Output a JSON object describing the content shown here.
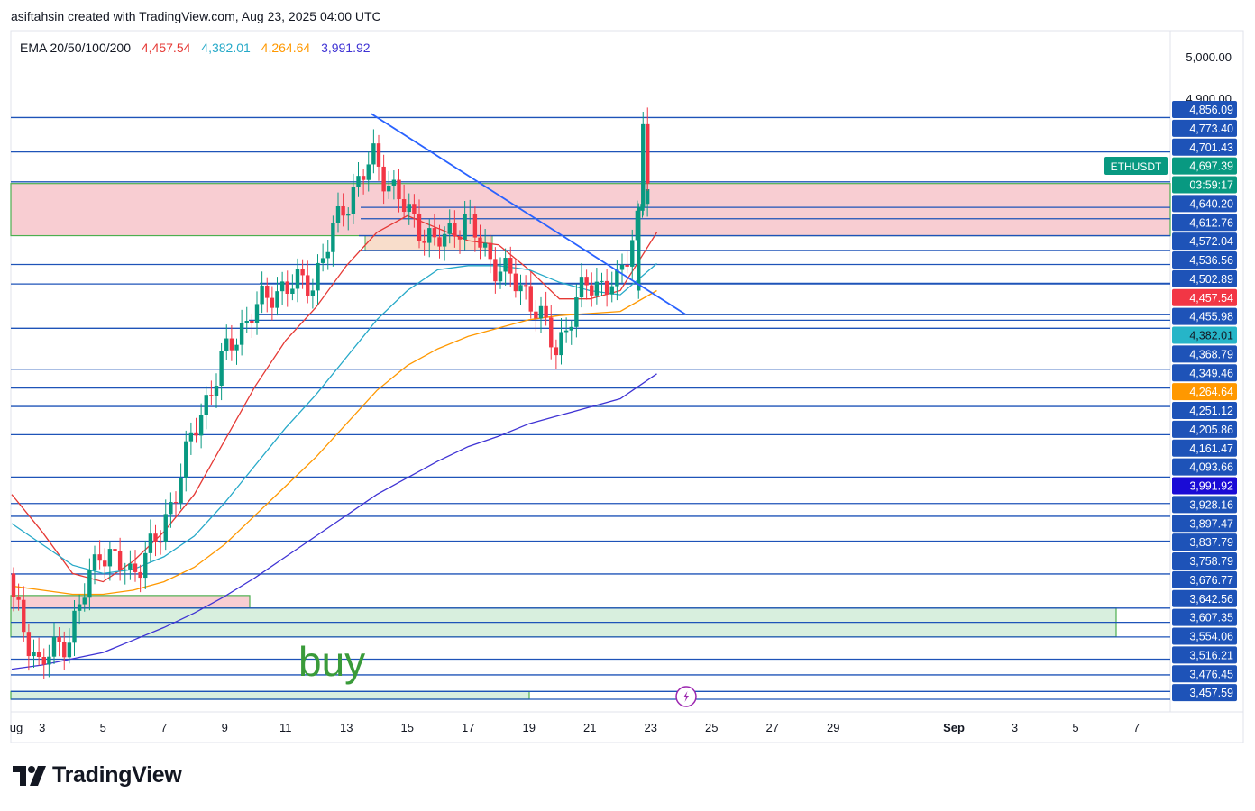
{
  "header": {
    "title": "asiftahsin created with TradingView.com, Aug 23, 2025 04:00 UTC"
  },
  "ema_legend": {
    "label": "EMA 20/50/100/200",
    "values": [
      "4,457.54",
      "4,382.01",
      "4,264.64",
      "3,991.92"
    ],
    "colors": [
      "#e53935",
      "#26a9c8",
      "#ff9800",
      "#3f33d4"
    ]
  },
  "brand": {
    "name": "TradingView"
  },
  "colors": {
    "up": "#089981",
    "down": "#f23645",
    "level_line": "#1e53b8",
    "trend_line": "#2962ff",
    "zone_red": "#f8cdd2",
    "zone_green": "#d8efde",
    "zone_border": "#4caf50",
    "buy_text": "#3a9b3a"
  },
  "chart_data": {
    "type": "candlestick",
    "symbol": "ETHUSDT",
    "countdown": "03:59:17",
    "current_price": 4697.39,
    "ylim": [
      3435,
      5035
    ],
    "price_axis_ticks": [
      5000,
      4900
    ],
    "x_tick_labels": [
      "ug",
      "3",
      "5",
      "7",
      "9",
      "11",
      "13",
      "15",
      "17",
      "19",
      "21",
      "23",
      "25",
      "27",
      "29",
      "Sep",
      "3",
      "5",
      "7"
    ],
    "horizontal_levels": [
      4856.09,
      4773.4,
      4701.43,
      4640.2,
      4612.76,
      4572.04,
      4536.56,
      4502.89,
      4457.54,
      4455.98,
      4382.01,
      4368.79,
      4349.46,
      4251.12,
      4205.86,
      4161.47,
      4093.66,
      3991.92,
      3928.16,
      3897.47,
      3837.79,
      3758.79,
      3676.77,
      3642.56,
      3607.35,
      3554.06,
      3516.21,
      3476.45,
      3457.59
    ],
    "price_labels": [
      {
        "text": "4,856.09",
        "kind": "plain"
      },
      {
        "text": "4,773.40",
        "kind": "plain"
      },
      {
        "text": "4,701.43",
        "kind": "plain"
      },
      {
        "text": "4,697.39",
        "kind": "green"
      },
      {
        "text": "03:59:17",
        "kind": "green"
      },
      {
        "text": "4,640.20",
        "kind": "plain"
      },
      {
        "text": "4,612.76",
        "kind": "plain"
      },
      {
        "text": "4,572.04",
        "kind": "plain"
      },
      {
        "text": "4,536.56",
        "kind": "plain"
      },
      {
        "text": "4,502.89",
        "kind": "plain"
      },
      {
        "text": "4,457.54",
        "kind": "red"
      },
      {
        "text": "4,455.98",
        "kind": "plain"
      },
      {
        "text": "4,382.01",
        "kind": "teal"
      },
      {
        "text": "4,368.79",
        "kind": "plain"
      },
      {
        "text": "4,349.46",
        "kind": "plain"
      },
      {
        "text": "4,264.64",
        "kind": "orange"
      },
      {
        "text": "4,251.12",
        "kind": "plain"
      },
      {
        "text": "4,205.86",
        "kind": "plain"
      },
      {
        "text": "4,161.47",
        "kind": "plain"
      },
      {
        "text": "4,093.66",
        "kind": "plain"
      },
      {
        "text": "3,991.92",
        "kind": "navy"
      },
      {
        "text": "3,928.16",
        "kind": "plain"
      },
      {
        "text": "3,897.47",
        "kind": "plain"
      },
      {
        "text": "3,837.79",
        "kind": "plain"
      },
      {
        "text": "3,758.79",
        "kind": "plain"
      },
      {
        "text": "3,676.77",
        "kind": "plain"
      },
      {
        "text": "3,642.56",
        "kind": "plain"
      },
      {
        "text": "3,607.35",
        "kind": "plain"
      },
      {
        "text": "3,554.06",
        "kind": "plain"
      },
      {
        "text": "3,516.21",
        "kind": "plain"
      },
      {
        "text": "3,476.45",
        "kind": "plain"
      },
      {
        "text": "3,457.59",
        "kind": "plain"
      }
    ],
    "zones": [
      {
        "kind": "resistance",
        "from": 4572.04,
        "to": 4697.39
      },
      {
        "kind": "resistance",
        "from": 3676.77,
        "to": 3707
      },
      {
        "kind": "support",
        "from": 3607.35,
        "to": 3676.77
      },
      {
        "kind": "support",
        "from": 3457.59,
        "to": 3476.45
      }
    ],
    "annotation": "buy",
    "ema": [
      {
        "name": "EMA 20",
        "last": 4457.54
      },
      {
        "name": "EMA 50",
        "last": 4382.01
      },
      {
        "name": "EMA 100",
        "last": 4264.64
      },
      {
        "name": "EMA 200",
        "last": 3991.92
      }
    ],
    "candles_sampled": [
      {
        "date": "Aug 2",
        "close": 3720
      },
      {
        "date": "Aug 3",
        "close": 3540
      },
      {
        "date": "Aug 4",
        "close": 3610
      },
      {
        "date": "Aug 5",
        "close": 3820
      },
      {
        "date": "Aug 6",
        "close": 3760
      },
      {
        "date": "Aug 7",
        "close": 3850
      },
      {
        "date": "Aug 8",
        "close": 4080
      },
      {
        "date": "Aug 9",
        "close": 4270
      },
      {
        "date": "Aug 10",
        "close": 4390
      },
      {
        "date": "Aug 11",
        "close": 4450
      },
      {
        "date": "Aug 12",
        "close": 4460
      },
      {
        "date": "Aug 13",
        "close": 4640
      },
      {
        "date": "Aug 14",
        "close": 4760
      },
      {
        "date": "Aug 15",
        "close": 4640
      },
      {
        "date": "Aug 16",
        "close": 4550
      },
      {
        "date": "Aug 17",
        "close": 4610
      },
      {
        "date": "Aug 18",
        "close": 4500
      },
      {
        "date": "Aug 19",
        "close": 4440
      },
      {
        "date": "Aug 20",
        "close": 4300
      },
      {
        "date": "Aug 21",
        "close": 4460
      },
      {
        "date": "Aug 22",
        "close": 4450
      },
      {
        "date": "Aug 23",
        "close": 4697.39
      }
    ]
  }
}
